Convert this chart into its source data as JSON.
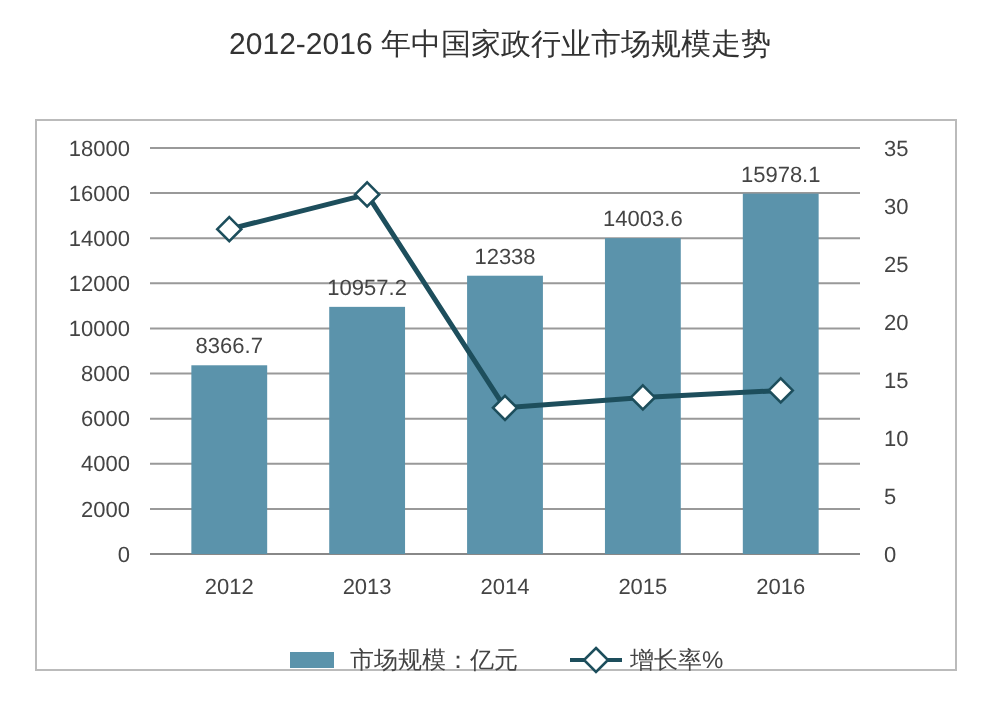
{
  "chart_data": {
    "type": "bar",
    "title": "2012-2016 年中国家政行业市场规模走势",
    "categories": [
      "2012",
      "2013",
      "2014",
      "2015",
      "2016"
    ],
    "series": [
      {
        "name": "市场规模：亿元",
        "color": "#5b93ab",
        "values": [
          8366.7,
          10957.2,
          12338,
          14003.6,
          15978.1
        ],
        "data_labels": true
      },
      {
        "name": "增长率%",
        "type": "line",
        "axis": "y2",
        "color": "#1d4e5c",
        "values": [
          28,
          31,
          12.6,
          13.5,
          14.1
        ],
        "marker": "diamond"
      }
    ],
    "ylim": [
      0,
      18000
    ],
    "yticks": [
      0,
      2000,
      4000,
      6000,
      8000,
      10000,
      12000,
      14000,
      16000,
      18000
    ],
    "y2lim": [
      0,
      35
    ],
    "y2ticks": [
      0,
      5,
      10,
      15,
      20,
      25,
      30,
      35
    ],
    "grid": "y",
    "legend": "bottom"
  }
}
